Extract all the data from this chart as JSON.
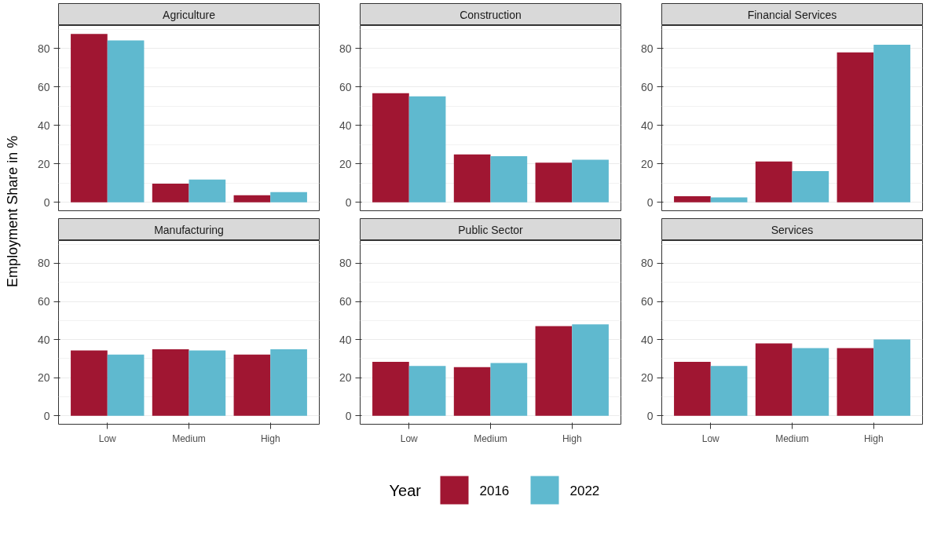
{
  "chart_data": [
    {
      "type": "bar",
      "title": "Agriculture",
      "ylabel": "Employment Share in %",
      "legend_title": "Year",
      "legend": "bottom",
      "categories": [
        null,
        null,
        null
      ],
      "ylim": [
        -4.4,
        91.9
      ],
      "yticks": [
        0,
        20,
        40,
        60,
        80
      ],
      "grid": "y",
      "tick_labels": "y",
      "series": [
        {
          "name": "2016",
          "color": "#a01632",
          "values": [
            87.5,
            9.7,
            3.7
          ]
        },
        {
          "name": "2022",
          "color": "#5fb9cf",
          "values": [
            84.1,
            11.8,
            5.3
          ]
        }
      ]
    },
    {
      "type": "bar",
      "title": "Construction",
      "categories": [
        null,
        null,
        null
      ],
      "ylim": [
        -4.4,
        91.9
      ],
      "yticks": [
        0,
        20,
        40,
        60,
        80
      ],
      "grid": "y",
      "tick_labels": "y",
      "series": [
        {
          "color": "#a01632",
          "values": [
            56.7,
            24.9,
            20.6
          ]
        },
        {
          "color": "#5fb9cf",
          "values": [
            55.1,
            24.0,
            22.1
          ]
        }
      ]
    },
    {
      "type": "bar",
      "title": "Financial Services",
      "categories": [
        null,
        null,
        null
      ],
      "ylim": [
        -4.4,
        91.9
      ],
      "yticks": [
        0,
        20,
        40,
        60,
        80
      ],
      "grid": "y",
      "tick_labels": "y",
      "series": [
        {
          "color": "#a01632",
          "values": [
            3.1,
            21.2,
            77.9
          ]
        },
        {
          "color": "#5fb9cf",
          "values": [
            2.5,
            16.2,
            81.9
          ]
        }
      ]
    },
    {
      "type": "bar",
      "title": "Manufacturing",
      "categories": [
        "Low",
        "Medium",
        "High"
      ],
      "ylim": [
        -4.4,
        91.9
      ],
      "yticks": [
        0,
        20,
        40,
        60,
        80
      ],
      "grid": "y",
      "series": [
        {
          "color": "#a01632",
          "values": [
            34.3,
            34.9,
            32.1
          ]
        },
        {
          "color": "#5fb9cf",
          "values": [
            32.1,
            34.3,
            34.9
          ]
        }
      ]
    },
    {
      "type": "bar",
      "title": "Public Sector",
      "categories": [
        "Low",
        "Medium",
        "High"
      ],
      "ylim": [
        -4.4,
        91.9
      ],
      "yticks": [
        0,
        20,
        40,
        60,
        80
      ],
      "grid": "y",
      "series": [
        {
          "color": "#a01632",
          "values": [
            28.3,
            25.5,
            47.0
          ]
        },
        {
          "color": "#5fb9cf",
          "values": [
            26.2,
            27.7,
            48.0
          ]
        }
      ]
    },
    {
      "type": "bar",
      "title": "Services",
      "categories": [
        "Low",
        "Medium",
        "High"
      ],
      "ylim": [
        -4.4,
        91.9
      ],
      "yticks": [
        0,
        20,
        40,
        60,
        80
      ],
      "grid": "y",
      "series": [
        {
          "color": "#a01632",
          "values": [
            28.3,
            38.0,
            35.5
          ]
        },
        {
          "color": "#5fb9cf",
          "values": [
            26.2,
            35.5,
            40.0
          ]
        }
      ]
    }
  ]
}
